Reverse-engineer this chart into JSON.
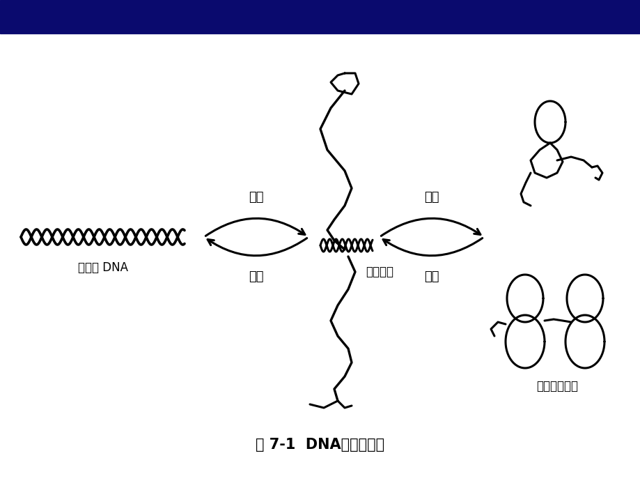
{
  "title": "图 7-1  DNA变性和复性",
  "title_fontsize": 15,
  "title_fontweight": "bold",
  "background_color": "#ffffff",
  "header_color": "#0a0a6e",
  "label_shuangluxuan": "双螺旋 DNA",
  "label_bufenjielian": "部分解链",
  "label_dangusuijijuanqu": "单股随机卷曲",
  "label_tuihuo_left": "退火",
  "label_jiare_left": "加热",
  "label_tuihuo_right": "退火",
  "label_jiare_right": "加热",
  "text_color": "#000000",
  "line_color": "#000000",
  "line_width": 2.2
}
